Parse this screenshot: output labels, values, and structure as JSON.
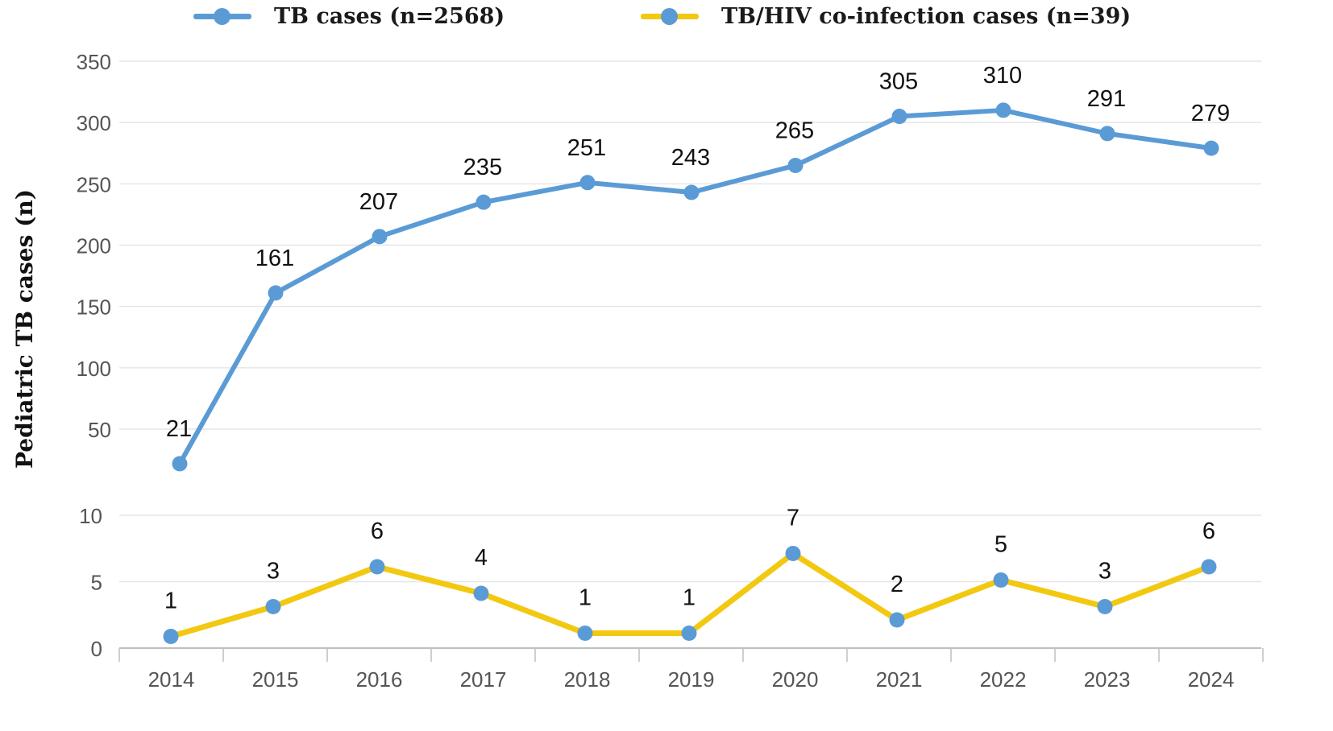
{
  "colors": {
    "tb": "#5b9bd5",
    "coinfection_line": "#f2c811",
    "coinfection_marker": "#5b9bd5",
    "grid": "#e6e6e6",
    "axis": "#bfbfbf",
    "tick_text": "#555555",
    "label_text": "#111111"
  },
  "legend": {
    "tb_label": "TB cases (n=2568)",
    "coinfection_label": "TB/HIV co-infection cases (n=39)"
  },
  "chart_data": {
    "type": "line",
    "title": "",
    "ylabel": "Pediatric TB cases (n)",
    "xlabel": "",
    "categories": [
      "2014",
      "2015",
      "2016",
      "2017",
      "2018",
      "2019",
      "2020",
      "2021",
      "2022",
      "2023",
      "2024"
    ],
    "series": [
      {
        "name": "TB cases (n=2568)",
        "values": [
          21,
          161,
          207,
          235,
          251,
          243,
          265,
          305,
          310,
          291,
          279
        ]
      },
      {
        "name": "TB/HIV co-infection cases (n=39)",
        "values": [
          1,
          3,
          6,
          4,
          1,
          1,
          7,
          2,
          5,
          3,
          6
        ]
      }
    ],
    "panels": [
      {
        "series": "TB cases (n=2568)",
        "yticks": [
          "50",
          "100",
          "150",
          "200",
          "250",
          "300",
          "350"
        ],
        "ylim": [
          21,
          350
        ]
      },
      {
        "series": "TB/HIV co-infection cases (n=39)",
        "yticks": [
          "0",
          "5",
          "10"
        ],
        "ylim": [
          0,
          10
        ]
      }
    ],
    "grid": true,
    "legend_position": "top",
    "data_labels": true
  }
}
